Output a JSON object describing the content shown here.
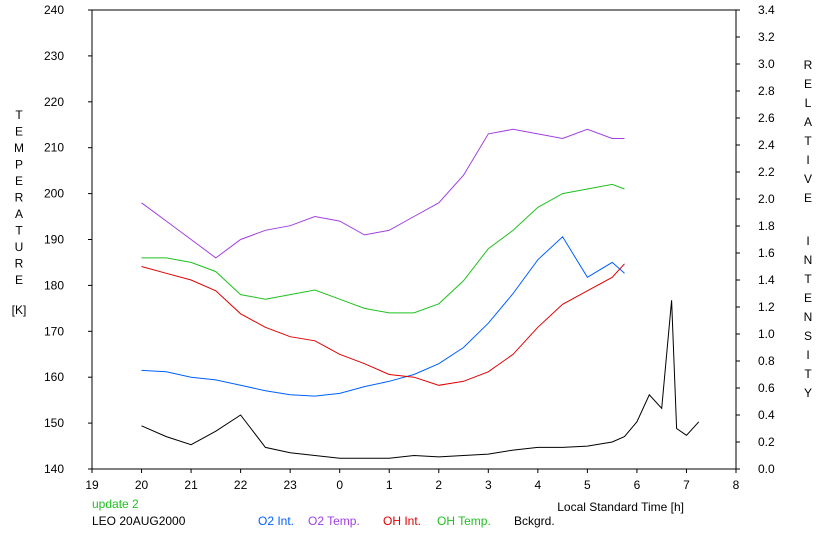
{
  "chart_data": {
    "type": "line",
    "left_axis_label": "TEMPERATURE",
    "left_axis_unit": "[K]",
    "right_axis_label": "RELATIVE INTENSITY",
    "xlabel": "Local Standard Time [h]",
    "x_range": [
      19,
      8
    ],
    "x_tick_labels": [
      "19",
      "20",
      "21",
      "22",
      "23",
      "0",
      "1",
      "2",
      "3",
      "4",
      "5",
      "6",
      "7",
      "8"
    ],
    "ylim_left": [
      140,
      240
    ],
    "ylim_right": [
      0,
      3.4
    ],
    "left_tick_labels": [
      "140",
      "150",
      "160",
      "170",
      "180",
      "190",
      "200",
      "210",
      "220",
      "230",
      "240"
    ],
    "right_tick_labels": [
      "0.0",
      "0.2",
      "0.4",
      "0.6",
      "0.8",
      "1.0",
      "1.2",
      "1.4",
      "1.6",
      "1.8",
      "2.0",
      "2.2",
      "2.4",
      "2.6",
      "2.8",
      "3.0",
      "3.2",
      "3.4"
    ],
    "status_text": "update 2",
    "station_text": "LEO 20AUG2000",
    "legend": [
      {
        "label": "O2 Int.",
        "color": "#0060ff"
      },
      {
        "label": "O2 Temp.",
        "color": "#a040e0"
      },
      {
        "label": "OH Int.",
        "color": "#e00000"
      },
      {
        "label": "OH Temp.",
        "color": "#20c020"
      },
      {
        "label": "Bckgrd.",
        "color": "#000000"
      }
    ],
    "series": [
      {
        "key": "o2_temp",
        "axis": "left",
        "color": "#a040e0",
        "x": [
          20.0,
          20.5,
          21.0,
          21.5,
          22.0,
          22.5,
          23.0,
          23.5,
          24.0,
          24.5,
          25.0,
          25.5,
          26.0,
          26.5,
          27.0,
          27.5,
          28.0,
          28.5,
          29.0,
          29.5,
          29.75
        ],
        "y": [
          198,
          194,
          190,
          186,
          190,
          192,
          193,
          195,
          194,
          191,
          192,
          195,
          198,
          204,
          213,
          214,
          213,
          212,
          214,
          212,
          212
        ]
      },
      {
        "key": "oh_temp",
        "axis": "left",
        "color": "#20c020",
        "x": [
          20.0,
          20.5,
          21.0,
          21.5,
          22.0,
          22.5,
          23.0,
          23.5,
          24.0,
          24.5,
          25.0,
          25.5,
          26.0,
          26.5,
          27.0,
          27.5,
          28.0,
          28.5,
          29.0,
          29.5,
          29.75
        ],
        "y": [
          186,
          186,
          185,
          183,
          178,
          177,
          178,
          179,
          177,
          175,
          174,
          174,
          176,
          181,
          188,
          192,
          197,
          200,
          201,
          202,
          201
        ]
      },
      {
        "key": "o2_int",
        "axis": "right",
        "color": "#0060ff",
        "x": [
          20.0,
          20.5,
          21.0,
          21.5,
          22.0,
          22.5,
          23.0,
          23.5,
          24.0,
          24.5,
          25.0,
          25.5,
          26.0,
          26.5,
          27.0,
          27.5,
          28.0,
          28.5,
          29.0,
          29.5,
          29.75
        ],
        "y": [
          0.73,
          0.72,
          0.68,
          0.66,
          0.62,
          0.58,
          0.55,
          0.54,
          0.56,
          0.61,
          0.65,
          0.7,
          0.78,
          0.9,
          1.08,
          1.3,
          1.55,
          1.72,
          1.42,
          1.53,
          1.45
        ]
      },
      {
        "key": "oh_int",
        "axis": "right",
        "color": "#e00000",
        "x": [
          20.0,
          20.5,
          21.0,
          21.5,
          22.0,
          22.5,
          23.0,
          23.5,
          24.0,
          24.5,
          25.0,
          25.5,
          26.0,
          26.5,
          27.0,
          27.5,
          28.0,
          28.5,
          29.0,
          29.5,
          29.75
        ],
        "y": [
          1.5,
          1.45,
          1.4,
          1.32,
          1.15,
          1.05,
          0.98,
          0.95,
          0.85,
          0.78,
          0.7,
          0.68,
          0.62,
          0.65,
          0.72,
          0.85,
          1.05,
          1.22,
          1.32,
          1.42,
          1.52
        ]
      },
      {
        "key": "bckgrd",
        "axis": "right",
        "color": "#000000",
        "x": [
          20.0,
          20.5,
          21.0,
          21.5,
          22.0,
          22.5,
          23.0,
          23.5,
          24.0,
          24.5,
          25.0,
          25.5,
          26.0,
          26.5,
          27.0,
          27.5,
          28.0,
          28.5,
          29.0,
          29.5,
          29.75,
          30.0,
          30.25,
          30.5,
          30.7,
          30.8,
          31.0,
          31.25
        ],
        "y": [
          0.32,
          0.24,
          0.18,
          0.28,
          0.4,
          0.16,
          0.12,
          0.1,
          0.08,
          0.08,
          0.08,
          0.1,
          0.09,
          0.1,
          0.11,
          0.14,
          0.16,
          0.16,
          0.17,
          0.2,
          0.24,
          0.35,
          0.55,
          0.45,
          1.25,
          0.3,
          0.25,
          0.35
        ]
      }
    ]
  }
}
